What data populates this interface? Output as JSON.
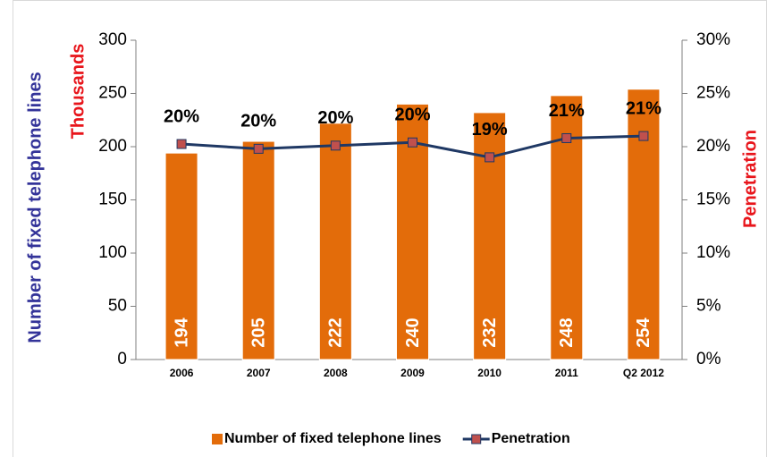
{
  "chart_data": {
    "type": "bar",
    "y_label": "Number of fixed telephone lines",
    "y_label_units": "Thousands",
    "y2_label": "Penetration",
    "categories": [
      "2006",
      "2007",
      "2008",
      "2009",
      "2010",
      "2011",
      "Q2 2012"
    ],
    "series": [
      {
        "name": "Number of fixed telephone lines",
        "type": "bar",
        "color": "#e36c0a",
        "axis": "y",
        "values": [
          194,
          205,
          222,
          240,
          232,
          248,
          254
        ]
      },
      {
        "name": "Penetration",
        "type": "line",
        "color": "#1f3864",
        "marker_color": "#c0504d",
        "axis": "y2",
        "values": [
          20.25,
          19.8,
          20.1,
          20.4,
          19.0,
          20.8,
          21.0
        ],
        "value_labels": [
          "20%",
          "20%",
          "20%",
          "20%",
          "19%",
          "21%",
          "21%"
        ]
      }
    ],
    "ylim": [
      0,
      300
    ],
    "yticks": [
      0,
      50,
      100,
      150,
      200,
      250,
      300
    ],
    "y2lim": [
      0,
      30
    ],
    "y2ticks": [
      {
        "value": 0,
        "label": "0%"
      },
      {
        "value": 5,
        "label": "5%"
      },
      {
        "value": 10,
        "label": "10%"
      },
      {
        "value": 15,
        "label": "15%"
      },
      {
        "value": 20,
        "label": "20%"
      },
      {
        "value": 25,
        "label": "25%"
      },
      {
        "value": 30,
        "label": "30%"
      }
    ],
    "grid": false,
    "legend": "bottom"
  }
}
